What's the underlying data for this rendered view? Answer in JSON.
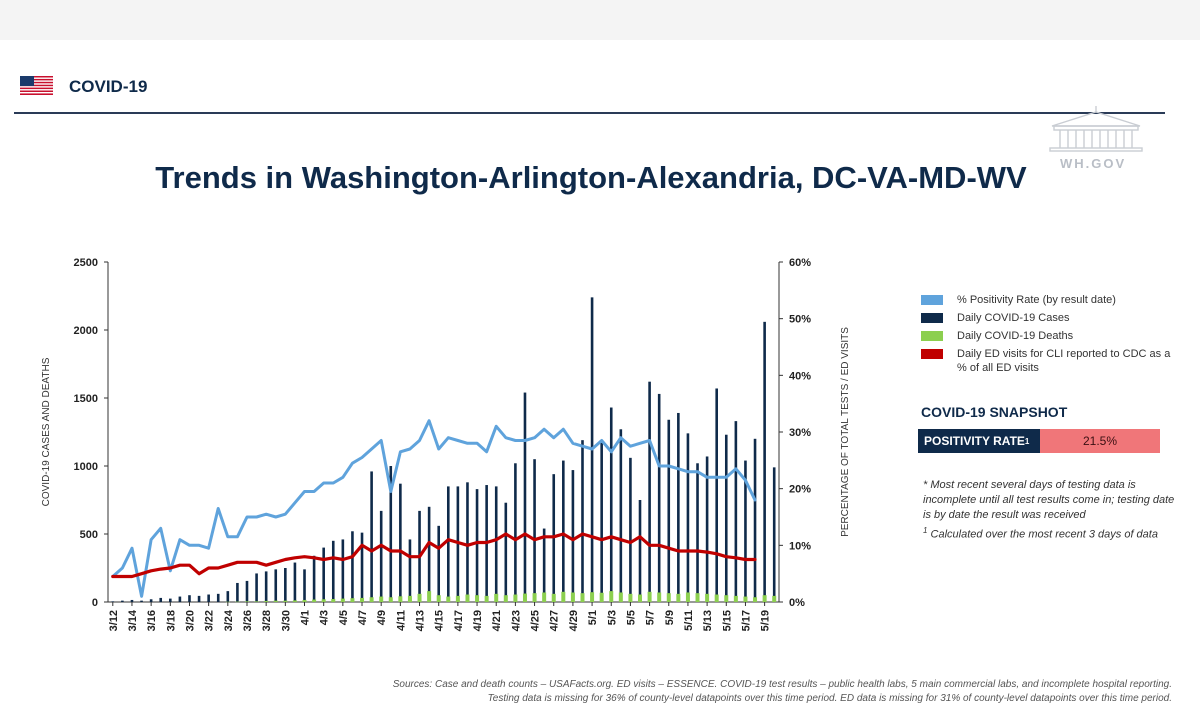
{
  "header": {
    "brand": "COVID-19",
    "site": "WH.GOV"
  },
  "title": "Trends in Washington-Arlington-Alexandria, DC-VA-MD-WV",
  "legend": [
    {
      "label": "% Positivity Rate (by result date)",
      "color": "#5fa3dc"
    },
    {
      "label": "Daily COVID-19 Cases",
      "color": "#0f2a4a"
    },
    {
      "label": "Daily COVID-19 Deaths",
      "color": "#8ccf4f"
    },
    {
      "label": "Daily ED visits for CLI reported to CDC as a % of all ED visits",
      "color": "#c00000"
    }
  ],
  "snapshot": {
    "title": "COVID-19 SNAPSHOT",
    "label": "POSITIVITY RATE",
    "label_sup": "1",
    "value": "21.5%"
  },
  "notes": {
    "line1": "* Most recent several days of testing data is incomplete until all test results come in; testing date is by date the result was received",
    "line2_sup": "1",
    "line2": " Calculated over the most recent 3 days of data"
  },
  "sources": {
    "line1": "Sources: Case and death counts – USAFacts.org. ED visits – ESSENCE. COVID-19 test results – public health labs, 5 main commercial labs, and incomplete hospital reporting.",
    "line2": "Testing data is missing for 36% of county-level datapoints over this time period. ED data is missing for 31% of county-level datapoints over this time period."
  },
  "chart_data": {
    "type": "bar",
    "title": "Trends in Washington-Arlington-Alexandria, DC-VA-MD-WV",
    "ylabel": "COVID-19 CASES AND DEATHS",
    "y2label": "PERCENTAGE OF TOTAL TESTS / ED VISITS",
    "ylim": [
      0,
      2500
    ],
    "y2lim": [
      0,
      60
    ],
    "yticks": [
      "0",
      "500",
      "1000",
      "1500",
      "2000",
      "2500"
    ],
    "y2ticks": [
      "0%",
      "10%",
      "20%",
      "30%",
      "40%",
      "50%",
      "60%"
    ],
    "xticklabels": [
      "3/12",
      "3/14",
      "3/16",
      "3/18",
      "3/20",
      "3/22",
      "3/24",
      "3/26",
      "3/28",
      "3/30",
      "4/1",
      "4/3",
      "4/5",
      "4/7",
      "4/9",
      "4/11",
      "4/13",
      "4/15",
      "4/17",
      "4/19",
      "4/21",
      "4/23",
      "4/25",
      "4/27",
      "4/29",
      "5/1",
      "5/3",
      "5/5",
      "5/7",
      "5/9",
      "5/11",
      "5/13",
      "5/15",
      "5/17",
      "5/19"
    ],
    "x": [
      "3/12",
      "3/13",
      "3/14",
      "3/15",
      "3/16",
      "3/17",
      "3/18",
      "3/19",
      "3/20",
      "3/21",
      "3/22",
      "3/23",
      "3/24",
      "3/25",
      "3/26",
      "3/27",
      "3/28",
      "3/29",
      "3/30",
      "3/31",
      "4/1",
      "4/2",
      "4/3",
      "4/4",
      "4/5",
      "4/6",
      "4/7",
      "4/8",
      "4/9",
      "4/10",
      "4/11",
      "4/12",
      "4/13",
      "4/14",
      "4/15",
      "4/16",
      "4/17",
      "4/18",
      "4/19",
      "4/20",
      "4/21",
      "4/22",
      "4/23",
      "4/24",
      "4/25",
      "4/26",
      "4/27",
      "4/28",
      "4/29",
      "4/30",
      "5/1",
      "5/2",
      "5/3",
      "5/4",
      "5/5",
      "5/6",
      "5/7",
      "5/8",
      "5/9",
      "5/10",
      "5/11",
      "5/12",
      "5/13",
      "5/14",
      "5/15",
      "5/16",
      "5/17",
      "5/18",
      "5/19",
      "5/20"
    ],
    "series": [
      {
        "name": "Daily COVID-19 Cases",
        "kind": "bar",
        "axis": "left",
        "color": "#0f2a4a",
        "values": [
          5,
          10,
          15,
          10,
          20,
          30,
          25,
          40,
          50,
          45,
          55,
          60,
          80,
          140,
          155,
          210,
          225,
          240,
          250,
          290,
          240,
          340,
          400,
          450,
          460,
          520,
          510,
          960,
          670,
          1000,
          870,
          460,
          670,
          700,
          560,
          850,
          850,
          880,
          830,
          860,
          850,
          730,
          1020,
          1540,
          1050,
          540,
          940,
          1040,
          970,
          1190,
          2240,
          1190,
          1430,
          1270,
          1060,
          750,
          1620,
          1530,
          1340,
          1390,
          1240,
          1020,
          1070,
          1570,
          1230,
          1330,
          1040,
          1200,
          2060,
          990
        ]
      },
      {
        "name": "Daily COVID-19 Deaths",
        "kind": "bar",
        "axis": "left",
        "color": "#8ccf4f",
        "values": [
          0,
          0,
          0,
          0,
          0,
          0,
          0,
          0,
          0,
          0,
          0,
          0,
          2,
          3,
          5,
          5,
          8,
          10,
          10,
          12,
          15,
          18,
          20,
          22,
          25,
          28,
          30,
          35,
          40,
          35,
          42,
          45,
          60,
          80,
          50,
          40,
          45,
          55,
          50,
          45,
          60,
          50,
          55,
          62,
          65,
          70,
          60,
          75,
          70,
          65,
          72,
          68,
          80,
          70,
          60,
          55,
          75,
          70,
          65,
          60,
          70,
          65,
          60,
          55,
          50,
          45,
          40,
          35,
          50,
          45
        ]
      },
      {
        "name": "% Positivity Rate (by result date)",
        "kind": "line",
        "axis": "right",
        "color": "#5fa3dc",
        "values": [
          4.5,
          6,
          9.5,
          1,
          11,
          13,
          5.5,
          11,
          10,
          10,
          9.5,
          16.5,
          11.5,
          11.5,
          15,
          15,
          15.5,
          15,
          15.5,
          17.5,
          19.5,
          19.5,
          21,
          21,
          22,
          24.5,
          25.5,
          27,
          28.5,
          19.5,
          26.5,
          27,
          28.5,
          32,
          27,
          29,
          28.5,
          28,
          28,
          26.5,
          31,
          29,
          28.5,
          28.5,
          29,
          30.5,
          29,
          30.5,
          28,
          27.5,
          27,
          28.5,
          26.5,
          29,
          27.5,
          28,
          28.5,
          24,
          24,
          23.5,
          23,
          23,
          22,
          22,
          22,
          23.5,
          21.5,
          18,
          null,
          null
        ]
      },
      {
        "name": "Daily ED visits for CLI reported to CDC as a % of all ED visits",
        "kind": "line",
        "axis": "right",
        "color": "#c00000",
        "values": [
          4.5,
          4.5,
          4.5,
          5,
          5.5,
          5.8,
          6,
          6.5,
          6.5,
          5,
          6,
          6,
          6.5,
          7,
          7,
          7,
          6.5,
          7,
          7.5,
          7.8,
          8,
          7.8,
          7.5,
          7.8,
          7.5,
          8,
          10,
          9,
          10,
          9,
          9,
          8,
          8,
          10.5,
          9.5,
          11,
          10.5,
          10,
          10.5,
          10.5,
          11,
          12,
          11,
          12,
          11,
          11.5,
          11.5,
          12,
          11,
          12,
          11.5,
          11,
          11.5,
          11,
          10.5,
          11.5,
          10,
          10,
          9.5,
          9,
          9,
          9,
          8.8,
          8.5,
          8,
          7.8,
          7.5,
          7.5,
          null,
          null
        ]
      }
    ]
  }
}
